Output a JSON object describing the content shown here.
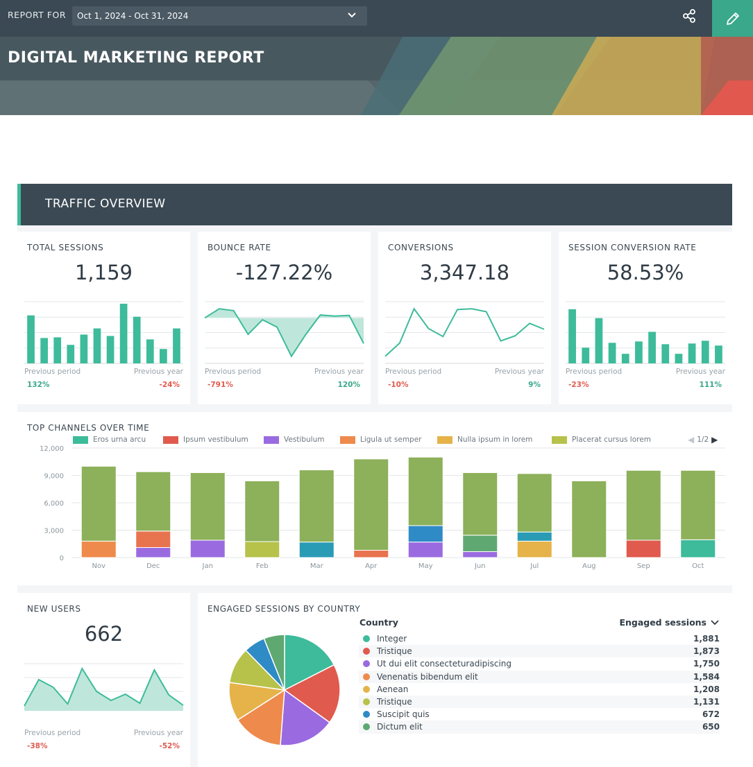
{
  "header": {
    "report_for_label": "REPORT FOR",
    "date_range": "Oct 1, 2024 - Oct 31, 2024",
    "title": "DIGITAL MARKETING REPORT",
    "share_icon": "share-icon",
    "edit_icon": "pencil-icon",
    "accent_color": "#3aa88a"
  },
  "section": {
    "title": "TRAFFIC OVERVIEW"
  },
  "kpis": [
    {
      "title": "TOTAL SESSIONS",
      "value": "1,159",
      "type": "bar",
      "series": [
        70,
        37,
        38,
        27,
        42,
        51,
        40,
        87,
        68,
        35,
        21,
        51
      ],
      "prev_period_label": "Previous period",
      "prev_period_pct": "132%",
      "prev_period_dir": "pos",
      "prev_year_label": "Previous year",
      "prev_year_pct": "-24%",
      "prev_year_dir": "neg"
    },
    {
      "title": "BOUNCE RATE",
      "value": "-127.22%",
      "type": "line-area",
      "series": [
        -130,
        -105,
        -110,
        -175,
        -135,
        -155,
        -235,
        -175,
        -122,
        -125,
        -123,
        -200
      ],
      "baseline": -130,
      "prev_period_label": "Previous period",
      "prev_period_pct": "-791%",
      "prev_period_dir": "neg",
      "prev_year_label": "Previous year",
      "prev_year_pct": "120%",
      "prev_year_dir": "pos"
    },
    {
      "title": "CONVERSIONS",
      "value": "3,347.18",
      "type": "line",
      "series": [
        2700,
        2880,
        3350,
        3080,
        2970,
        3340,
        3350,
        3310,
        2910,
        2980,
        3150,
        3070
      ],
      "prev_period_label": "Previous period",
      "prev_period_pct": "-10%",
      "prev_period_dir": "neg",
      "prev_year_label": "Previous year",
      "prev_year_pct": "9%",
      "prev_year_dir": "pos"
    },
    {
      "title": "SESSION CONVERSION RATE",
      "value": "58.53%",
      "type": "bar",
      "series": [
        79,
        23,
        66,
        30,
        14,
        32,
        46,
        28,
        14,
        29,
        33,
        26
      ],
      "prev_period_label": "Previous period",
      "prev_period_pct": "-23%",
      "prev_period_dir": "neg",
      "prev_year_label": "Previous year",
      "prev_year_pct": "111%",
      "prev_year_dir": "pos"
    }
  ],
  "channels": {
    "title": "TOP CHANNELS OVER TIME",
    "pager": "1/2",
    "legend": [
      {
        "name": "Eros urna arcu",
        "color": "#3dbb9a"
      },
      {
        "name": "Ipsum vestibulum",
        "color": "#e05a4e"
      },
      {
        "name": "Vestibulum",
        "color": "#9a6be0"
      },
      {
        "name": "Ligula ut semper",
        "color": "#ee8a4c"
      },
      {
        "name": "Nulla ipsum in lorem",
        "color": "#e5b34a"
      },
      {
        "name": "Placerat cursus lorem",
        "color": "#b6c24a"
      }
    ]
  },
  "chart_data": {
    "type": "bar",
    "stacked": true,
    "title": "TOP CHANNELS OVER TIME",
    "categories": [
      "Nov",
      "Dec",
      "Jan",
      "Feb",
      "Mar",
      "Apr",
      "May",
      "Jun",
      "Jul",
      "Aug",
      "Sep",
      "Oct"
    ],
    "ylim": [
      0,
      12000
    ],
    "yticks": [
      "0",
      "3,000",
      "6,000",
      "9,000",
      "12,000"
    ],
    "segments": [
      [
        {
          "v": 1800,
          "c": "#ee8a4c"
        },
        {
          "v": 8200,
          "c": "#8db05a"
        }
      ],
      [
        {
          "v": 1100,
          "c": "#9a6be0"
        },
        {
          "v": 1800,
          "c": "#e8734f"
        },
        {
          "v": 6500,
          "c": "#8db05a"
        }
      ],
      [
        {
          "v": 1900,
          "c": "#9a6be0"
        },
        {
          "v": 7400,
          "c": "#8db05a"
        }
      ],
      [
        {
          "v": 1750,
          "c": "#b6c24a"
        },
        {
          "v": 6650,
          "c": "#8db05a"
        }
      ],
      [
        {
          "v": 1700,
          "c": "#2a9bb5"
        },
        {
          "v": 7900,
          "c": "#8db05a"
        }
      ],
      [
        {
          "v": 800,
          "c": "#e8734f"
        },
        {
          "v": 10000,
          "c": "#8db05a"
        }
      ],
      [
        {
          "v": 1700,
          "c": "#9a6be0"
        },
        {
          "v": 1800,
          "c": "#2f8bc5"
        },
        {
          "v": 7500,
          "c": "#8db05a"
        }
      ],
      [
        {
          "v": 650,
          "c": "#9a6be0"
        },
        {
          "v": 1800,
          "c": "#5fa872"
        },
        {
          "v": 6850,
          "c": "#8db05a"
        }
      ],
      [
        {
          "v": 1800,
          "c": "#e5b34a"
        },
        {
          "v": 1000,
          "c": "#2a9bb5"
        },
        {
          "v": 6400,
          "c": "#8db05a"
        }
      ],
      [
        {
          "v": 8400,
          "c": "#8db05a"
        }
      ],
      [
        {
          "v": 1900,
          "c": "#e05a4e"
        },
        {
          "v": 7650,
          "c": "#8db05a"
        }
      ],
      [
        {
          "v": 1950,
          "c": "#3dbb9a"
        },
        {
          "v": 7600,
          "c": "#8db05a"
        }
      ]
    ],
    "totals": [
      10000,
      9400,
      9300,
      8400,
      9600,
      10800,
      11000,
      9300,
      9200,
      8400,
      9550,
      9550
    ]
  },
  "new_users": {
    "title": "NEW USERS",
    "value": "662",
    "series": [
      3,
      41,
      30,
      6,
      57,
      24,
      11,
      20,
      7,
      55,
      19,
      4
    ],
    "prev_period_label": "Previous period",
    "prev_period_pct": "-38%",
    "prev_period_dir": "neg",
    "prev_year_label": "Previous year",
    "prev_year_pct": "-52%",
    "prev_year_dir": "neg"
  },
  "countries": {
    "title": "ENGAGED SESSIONS BY COUNTRY",
    "col_country": "Country",
    "col_sessions": "Engaged sessions",
    "rows": [
      {
        "name": "Integer",
        "value": "1,881",
        "num": 1881,
        "color": "#3dbb9a"
      },
      {
        "name": "Tristique",
        "value": "1,873",
        "num": 1873,
        "color": "#e05a4e"
      },
      {
        "name": "Ut dui elit consecteturadipiscing",
        "value": "1,750",
        "num": 1750,
        "color": "#9a6be0"
      },
      {
        "name": "Venenatis bibendum elit",
        "value": "1,584",
        "num": 1584,
        "color": "#ee8a4c"
      },
      {
        "name": "Aenean",
        "value": "1,208",
        "num": 1208,
        "color": "#e5b34a"
      },
      {
        "name": "Tristique",
        "value": "1,131",
        "num": 1131,
        "color": "#b6c24a"
      },
      {
        "name": "Suscipit quis",
        "value": "672",
        "num": 672,
        "color": "#2f8bc5"
      },
      {
        "name": "Dictum elit",
        "value": "650",
        "num": 650,
        "color": "#5fa872"
      }
    ]
  }
}
